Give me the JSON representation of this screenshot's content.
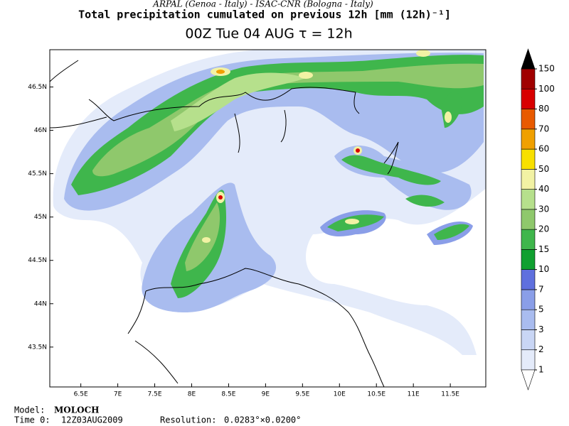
{
  "header": {
    "credit": "ARPAL (Genoa - Italy)  -  ISAC-CNR (Bologna - Italy)",
    "title": "Total precipitation cumulated on previous 12h [mm (12h)⁻¹]",
    "subtitle": "00Z Tue 04 AUG  τ = 12h"
  },
  "map": {
    "lonlim": [
      6.08,
      11.98
    ],
    "latlim": [
      43.04,
      46.93
    ],
    "xticks": [
      {
        "value": 6.5,
        "label": "6.5E"
      },
      {
        "value": 7,
        "label": "7E"
      },
      {
        "value": 7.5,
        "label": "7.5E"
      },
      {
        "value": 8,
        "label": "8E"
      },
      {
        "value": 8.5,
        "label": "8.5E"
      },
      {
        "value": 9,
        "label": "9E"
      },
      {
        "value": 9.5,
        "label": "9.5E"
      },
      {
        "value": 10,
        "label": "10E"
      },
      {
        "value": 10.5,
        "label": "10.5E"
      },
      {
        "value": 11,
        "label": "11E"
      },
      {
        "value": 11.5,
        "label": "11.5E"
      }
    ],
    "yticks": [
      {
        "value": 43.5,
        "label": "43.5N"
      },
      {
        "value": 44,
        "label": "44N"
      },
      {
        "value": 44.5,
        "label": "44.5N"
      },
      {
        "value": 45,
        "label": "45N"
      },
      {
        "value": 45.5,
        "label": "45.5N"
      },
      {
        "value": 46,
        "label": "46N"
      },
      {
        "value": 46.5,
        "label": "46.5N"
      }
    ]
  },
  "colorbar": {
    "levels": [
      1,
      2,
      3,
      5,
      7,
      10,
      15,
      20,
      30,
      40,
      50,
      60,
      70,
      80,
      100,
      150
    ],
    "colors": [
      "#e4ebfa",
      "#c9d6f5",
      "#a9bcef",
      "#8a9ee8",
      "#5f70de",
      "#10a030",
      "#3fb64c",
      "#8fc86c",
      "#b6e08c",
      "#f2f2a4",
      "#f8e000",
      "#f0a000",
      "#e85a00",
      "#d80000",
      "#a00000"
    ],
    "under_color": "#ffffff",
    "over_color": "#000000"
  },
  "footer": {
    "model_label": "Model:",
    "model": "MOLOCH",
    "time_label": "Time 0:",
    "time": "12Z03AUG2009",
    "resolution_label": "Resolution:",
    "resolution": "0.0283°×0.0200°"
  }
}
